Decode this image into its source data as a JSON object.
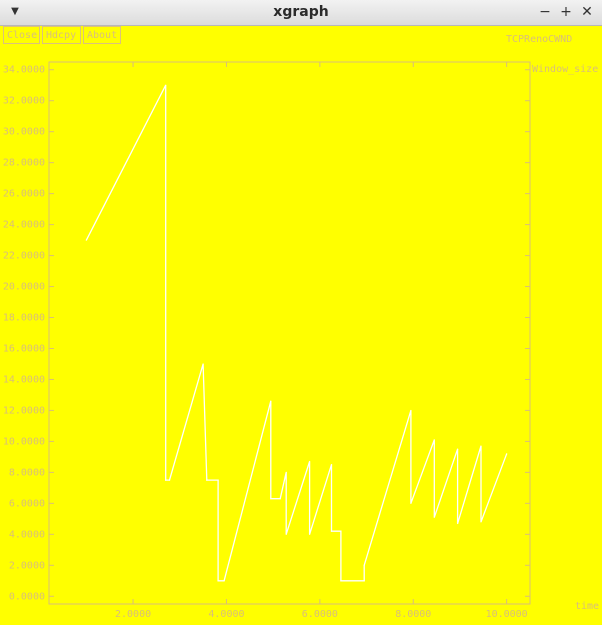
{
  "window": {
    "title": "xgraph"
  },
  "buttons": {
    "close": "Close",
    "hdcpy": "Hdcpy",
    "about": "About"
  },
  "colors": {
    "background": "#ffff00",
    "trace": "#ffffff",
    "labels": "#d9bf78"
  },
  "chart_data": {
    "type": "line",
    "title": "TCPRenoCWND",
    "xlabel": "time",
    "ylabel": "Window_size",
    "xlim": [
      0.2,
      10.5
    ],
    "ylim": [
      -0.5,
      34.5
    ],
    "x_ticks": [
      "2.0000",
      "4.0000",
      "6.0000",
      "8.0000",
      "10.0000"
    ],
    "y_ticks": [
      "0.0000",
      "2.0000",
      "4.0000",
      "6.0000",
      "8.0000",
      "10.0000",
      "12.0000",
      "14.0000",
      "16.0000",
      "18.0000",
      "20.0000",
      "22.0000",
      "24.0000",
      "26.0000",
      "28.0000",
      "30.0000",
      "32.0000",
      "34.0000"
    ],
    "grid": false,
    "series": [
      {
        "x": [
          1.0,
          2.7,
          2.7,
          2.78,
          3.5,
          3.58,
          3.82,
          3.82,
          3.95,
          4.95,
          4.95,
          5.15,
          5.28,
          5.28,
          5.78,
          5.78,
          6.25,
          6.25,
          6.45,
          6.45,
          6.95,
          6.95,
          7.95,
          7.95,
          8.45,
          8.45,
          8.95,
          8.95,
          9.45,
          9.45,
          10.0
        ],
        "y": [
          23,
          33,
          7.5,
          7.5,
          15,
          7.5,
          7.5,
          1,
          1,
          12.6,
          6.3,
          6.3,
          8,
          4,
          8.7,
          4,
          8.5,
          4.2,
          4.2,
          1,
          1,
          2,
          12,
          6,
          10.1,
          5.1,
          9.5,
          4.7,
          9.7,
          4.8,
          9.2
        ]
      }
    ]
  }
}
